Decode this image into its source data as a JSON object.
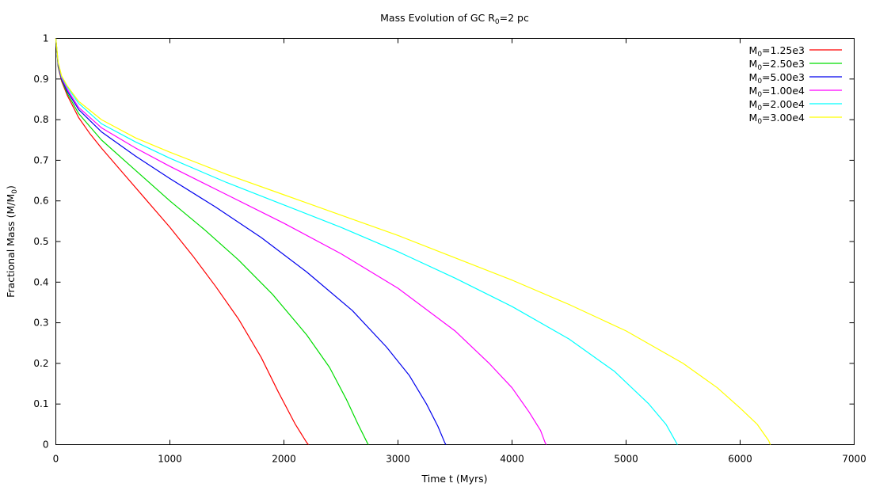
{
  "chart_data": {
    "type": "line",
    "title": "Mass Evolution of GC R",
    "title_sub": "0",
    "title_suffix": "=2 pc",
    "xlabel": "Time t (Myrs)",
    "ylabel_prefix": "Fractional Mass (M/M",
    "ylabel_sub": "0",
    "ylabel_suffix": ")",
    "xlim": [
      0,
      7000
    ],
    "ylim": [
      0,
      1
    ],
    "x_ticks": [
      "0",
      "1000",
      "2000",
      "3000",
      "4000",
      "5000",
      "6000",
      "7000"
    ],
    "y_ticks": [
      "0",
      "0.1",
      "0.2",
      "0.3",
      "0.4",
      "0.5",
      "0.6",
      "0.7",
      "0.8",
      "0.9",
      "1"
    ],
    "grid": false,
    "legend_position": "top-right",
    "series": [
      {
        "name_prefix": "M",
        "name_sub": "0",
        "name_suffix": "=1.25e3",
        "color": "#ff0000",
        "points": [
          [
            0,
            1
          ],
          [
            20,
            0.93
          ],
          [
            50,
            0.895
          ],
          [
            100,
            0.86
          ],
          [
            200,
            0.805
          ],
          [
            300,
            0.765
          ],
          [
            400,
            0.73
          ],
          [
            600,
            0.665
          ],
          [
            800,
            0.6
          ],
          [
            1000,
            0.535
          ],
          [
            1200,
            0.465
          ],
          [
            1400,
            0.39
          ],
          [
            1600,
            0.31
          ],
          [
            1800,
            0.215
          ],
          [
            1950,
            0.13
          ],
          [
            2100,
            0.05
          ],
          [
            2200,
            0.005
          ],
          [
            2215,
            0
          ]
        ]
      },
      {
        "name_prefix": "M",
        "name_sub": "0",
        "name_suffix": "=2.50e3",
        "color": "#00dd00",
        "points": [
          [
            0,
            1
          ],
          [
            20,
            0.932
          ],
          [
            50,
            0.898
          ],
          [
            100,
            0.865
          ],
          [
            200,
            0.815
          ],
          [
            400,
            0.75
          ],
          [
            600,
            0.7
          ],
          [
            800,
            0.65
          ],
          [
            1000,
            0.6
          ],
          [
            1300,
            0.53
          ],
          [
            1600,
            0.455
          ],
          [
            1900,
            0.37
          ],
          [
            2200,
            0.27
          ],
          [
            2400,
            0.19
          ],
          [
            2550,
            0.11
          ],
          [
            2650,
            0.05
          ],
          [
            2730,
            0.005
          ],
          [
            2740,
            0
          ]
        ]
      },
      {
        "name_prefix": "M",
        "name_sub": "0",
        "name_suffix": "=5.00e3",
        "color": "#0000ee",
        "points": [
          [
            0,
            1
          ],
          [
            20,
            0.935
          ],
          [
            50,
            0.9
          ],
          [
            100,
            0.87
          ],
          [
            200,
            0.825
          ],
          [
            400,
            0.77
          ],
          [
            700,
            0.71
          ],
          [
            1000,
            0.655
          ],
          [
            1400,
            0.585
          ],
          [
            1800,
            0.51
          ],
          [
            2200,
            0.425
          ],
          [
            2600,
            0.33
          ],
          [
            2900,
            0.24
          ],
          [
            3100,
            0.17
          ],
          [
            3250,
            0.1
          ],
          [
            3350,
            0.045
          ],
          [
            3410,
            0.005
          ],
          [
            3420,
            0
          ]
        ]
      },
      {
        "name_prefix": "M",
        "name_sub": "0",
        "name_suffix": "=1.00e4",
        "color": "#ff00ff",
        "points": [
          [
            0,
            1
          ],
          [
            20,
            0.938
          ],
          [
            50,
            0.903
          ],
          [
            100,
            0.875
          ],
          [
            200,
            0.83
          ],
          [
            400,
            0.78
          ],
          [
            700,
            0.73
          ],
          [
            1000,
            0.685
          ],
          [
            1500,
            0.615
          ],
          [
            2000,
            0.545
          ],
          [
            2500,
            0.47
          ],
          [
            3000,
            0.385
          ],
          [
            3500,
            0.28
          ],
          [
            3800,
            0.2
          ],
          [
            4000,
            0.14
          ],
          [
            4150,
            0.08
          ],
          [
            4250,
            0.035
          ],
          [
            4290,
            0.005
          ],
          [
            4300,
            0
          ]
        ]
      },
      {
        "name_prefix": "M",
        "name_sub": "0",
        "name_suffix": "=2.00e4",
        "color": "#00ffff",
        "points": [
          [
            0,
            1
          ],
          [
            20,
            0.94
          ],
          [
            50,
            0.906
          ],
          [
            100,
            0.88
          ],
          [
            200,
            0.84
          ],
          [
            400,
            0.79
          ],
          [
            700,
            0.745
          ],
          [
            1000,
            0.705
          ],
          [
            1500,
            0.645
          ],
          [
            2000,
            0.59
          ],
          [
            2500,
            0.535
          ],
          [
            3000,
            0.475
          ],
          [
            3500,
            0.41
          ],
          [
            4000,
            0.34
          ],
          [
            4500,
            0.26
          ],
          [
            4900,
            0.18
          ],
          [
            5200,
            0.1
          ],
          [
            5350,
            0.05
          ],
          [
            5440,
            0.005
          ],
          [
            5450,
            0
          ]
        ]
      },
      {
        "name_prefix": "M",
        "name_sub": "0",
        "name_suffix": "=3.00e4",
        "color": "#ffff00",
        "points": [
          [
            0,
            1
          ],
          [
            20,
            0.942
          ],
          [
            50,
            0.908
          ],
          [
            100,
            0.883
          ],
          [
            200,
            0.845
          ],
          [
            400,
            0.8
          ],
          [
            700,
            0.755
          ],
          [
            1000,
            0.72
          ],
          [
            1500,
            0.665
          ],
          [
            2000,
            0.615
          ],
          [
            2500,
            0.565
          ],
          [
            3000,
            0.515
          ],
          [
            3500,
            0.46
          ],
          [
            4000,
            0.405
          ],
          [
            4500,
            0.345
          ],
          [
            5000,
            0.28
          ],
          [
            5500,
            0.2
          ],
          [
            5800,
            0.14
          ],
          [
            6000,
            0.09
          ],
          [
            6150,
            0.05
          ],
          [
            6250,
            0.01
          ],
          [
            6265,
            0
          ]
        ]
      }
    ]
  }
}
